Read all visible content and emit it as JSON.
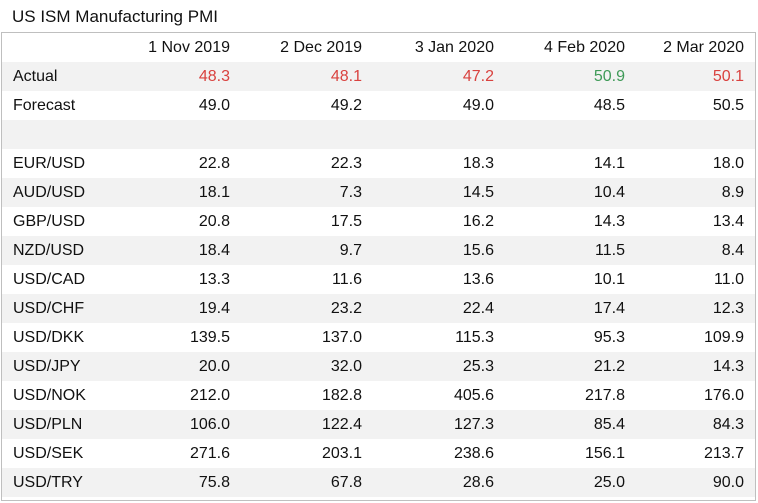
{
  "chart_data": {
    "type": "table",
    "title": "US ISM Manufacturing PMI",
    "columns": [
      "1 Nov 2019",
      "2 Dec 2019",
      "3 Jan 2020",
      "4 Feb 2020",
      "2 Mar 2020"
    ],
    "rows": [
      {
        "label": "Actual",
        "values": [
          "48.3",
          "48.1",
          "47.2",
          "50.9",
          "50.1"
        ],
        "colors": [
          "#d9423f",
          "#d9423f",
          "#d9423f",
          "#3f9a58",
          "#d9423f"
        ]
      },
      {
        "label": "Forecast",
        "values": [
          "49.0",
          "49.2",
          "49.0",
          "48.5",
          "50.5"
        ]
      },
      {
        "label": "",
        "values": [
          "",
          "",
          "",
          "",
          ""
        ]
      },
      {
        "label": "EUR/USD",
        "values": [
          "22.8",
          "22.3",
          "18.3",
          "14.1",
          "18.0"
        ]
      },
      {
        "label": "AUD/USD",
        "values": [
          "18.1",
          "7.3",
          "14.5",
          "10.4",
          "8.9"
        ]
      },
      {
        "label": "GBP/USD",
        "values": [
          "20.8",
          "17.5",
          "16.2",
          "14.3",
          "13.4"
        ]
      },
      {
        "label": "NZD/USD",
        "values": [
          "18.4",
          "9.7",
          "15.6",
          "11.5",
          "8.4"
        ]
      },
      {
        "label": "USD/CAD",
        "values": [
          "13.3",
          "11.6",
          "13.6",
          "10.1",
          "11.0"
        ]
      },
      {
        "label": "USD/CHF",
        "values": [
          "19.4",
          "23.2",
          "22.4",
          "17.4",
          "12.3"
        ]
      },
      {
        "label": "USD/DKK",
        "values": [
          "139.5",
          "137.0",
          "115.3",
          "95.3",
          "109.9"
        ]
      },
      {
        "label": "USD/JPY",
        "values": [
          "20.0",
          "32.0",
          "25.3",
          "21.2",
          "14.3"
        ]
      },
      {
        "label": "USD/NOK",
        "values": [
          "212.0",
          "182.8",
          "405.6",
          "217.8",
          "176.0"
        ]
      },
      {
        "label": "USD/PLN",
        "values": [
          "106.0",
          "122.4",
          "127.3",
          "85.4",
          "84.3"
        ]
      },
      {
        "label": "USD/SEK",
        "values": [
          "271.6",
          "203.1",
          "238.6",
          "156.1",
          "213.7"
        ]
      },
      {
        "label": "USD/TRY",
        "values": [
          "75.8",
          "67.8",
          "28.6",
          "25.0",
          "90.0"
        ]
      }
    ]
  }
}
